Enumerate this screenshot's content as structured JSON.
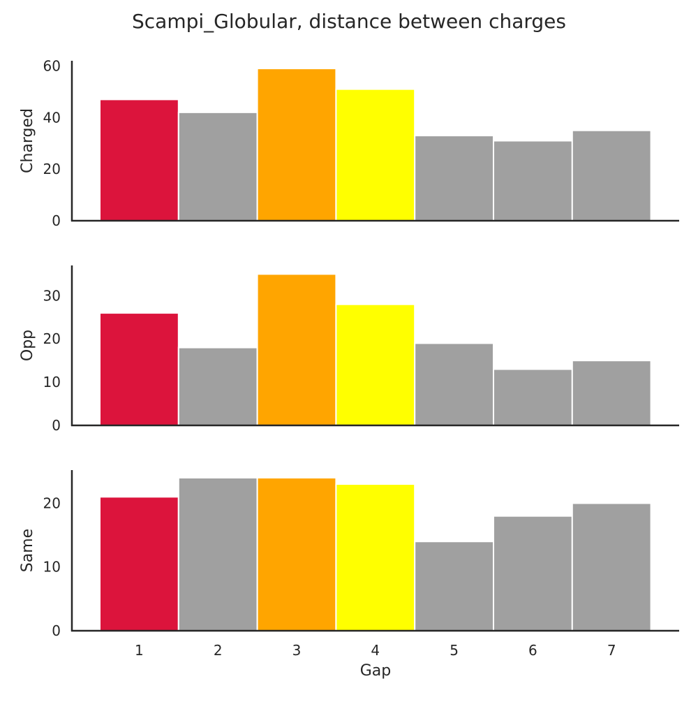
{
  "figure": {
    "title": "Scampi_Globular, distance between charges"
  },
  "colors": {
    "highlight": [
      "#dc143c",
      "#a0a0a0",
      "#ffa500",
      "#ffff00",
      "#a0a0a0",
      "#a0a0a0",
      "#a0a0a0"
    ],
    "axis": "#262626",
    "bar_edge": "#ffffff"
  },
  "chart_data": {
    "type": "bar",
    "xlabel": "Gap",
    "categories": [
      "1",
      "2",
      "3",
      "4",
      "5",
      "6",
      "7"
    ],
    "x_ticks": [
      "1",
      "2",
      "3",
      "4",
      "5",
      "6",
      "7"
    ],
    "legend": "none",
    "grid": false,
    "panels": [
      {
        "ylabel": "Charged",
        "values": [
          47,
          42,
          59,
          51,
          33,
          31,
          35
        ],
        "ylim": [
          0,
          62
        ],
        "y_ticks": [
          0,
          20,
          40,
          60
        ]
      },
      {
        "ylabel": "Opp",
        "values": [
          26,
          18,
          35,
          28,
          19,
          13,
          15
        ],
        "ylim": [
          0,
          37
        ],
        "y_ticks": [
          0,
          10,
          20,
          30
        ]
      },
      {
        "ylabel": "Same",
        "values": [
          21,
          24,
          24,
          23,
          14,
          18,
          20
        ],
        "ylim": [
          0,
          25.2
        ],
        "y_ticks": [
          0,
          10,
          20
        ]
      }
    ]
  }
}
